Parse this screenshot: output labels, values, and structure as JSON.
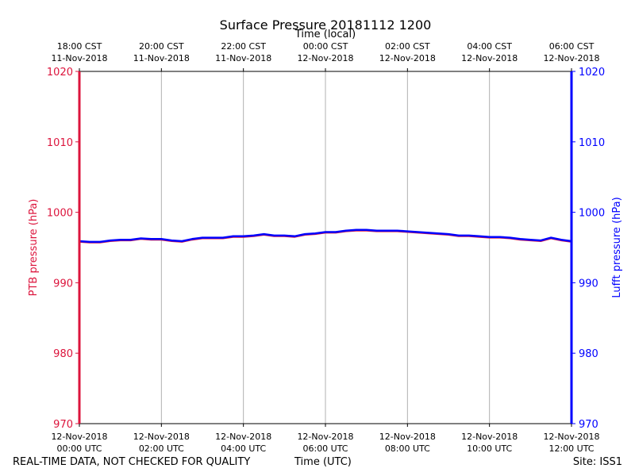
{
  "chart_data": {
    "type": "line",
    "title": "Surface Pressure 20181112 1200",
    "top_xlabel": "Time (local)",
    "xlabel": "Time (UTC)",
    "ylabel_left": "PTB pressure (hPa)",
    "ylabel_right": "Lufft pressure (hPa)",
    "ylim": [
      970,
      1020
    ],
    "yticks": [
      970,
      980,
      990,
      1000,
      1010,
      1020
    ],
    "xlim_hours": [
      0,
      12
    ],
    "bottom_ticks": [
      {
        "date": "12-Nov-2018",
        "time": "00:00 UTC"
      },
      {
        "date": "12-Nov-2018",
        "time": "02:00 UTC"
      },
      {
        "date": "12-Nov-2018",
        "time": "04:00 UTC"
      },
      {
        "date": "12-Nov-2018",
        "time": "06:00 UTC"
      },
      {
        "date": "12-Nov-2018",
        "time": "08:00 UTC"
      },
      {
        "date": "12-Nov-2018",
        "time": "10:00 UTC"
      },
      {
        "date": "12-Nov-2018",
        "time": "12:00 UTC"
      }
    ],
    "top_ticks": [
      {
        "time": "18:00 CST",
        "date": "11-Nov-2018"
      },
      {
        "time": "20:00 CST",
        "date": "11-Nov-2018"
      },
      {
        "time": "22:00 CST",
        "date": "11-Nov-2018"
      },
      {
        "time": "00:00 CST",
        "date": "12-Nov-2018"
      },
      {
        "time": "02:00 CST",
        "date": "12-Nov-2018"
      },
      {
        "time": "04:00 CST",
        "date": "12-Nov-2018"
      },
      {
        "time": "06:00 CST",
        "date": "12-Nov-2018"
      }
    ],
    "grid": "vertical",
    "colors": {
      "ptb": "#dc143c",
      "lufft": "#0000ff",
      "grid": "#b0b0b0"
    },
    "series": [
      {
        "key": "ptb",
        "x_hours": [
          0,
          0.25,
          0.5,
          0.75,
          1.0,
          1.25,
          1.5,
          1.75,
          2.0,
          2.25,
          2.5,
          2.75,
          3.0,
          3.25,
          3.5,
          3.75,
          4.0,
          4.25,
          4.5,
          4.75,
          5.0,
          5.25,
          5.5,
          5.75,
          6.0,
          6.25,
          6.5,
          6.75,
          7.0,
          7.25,
          7.5,
          7.75,
          8.0,
          8.25,
          8.5,
          8.75,
          9.0,
          9.25,
          9.5,
          9.75,
          10.0,
          10.25,
          10.5,
          10.75,
          11.0,
          11.25,
          11.5,
          11.75,
          12.0
        ],
        "values": [
          995.8,
          995.7,
          995.7,
          995.9,
          996.0,
          996.0,
          996.2,
          996.1,
          996.1,
          995.9,
          995.8,
          996.1,
          996.3,
          996.3,
          996.3,
          996.5,
          996.5,
          996.6,
          996.8,
          996.6,
          996.6,
          996.5,
          996.8,
          996.9,
          997.1,
          997.1,
          997.3,
          997.4,
          997.4,
          997.3,
          997.3,
          997.3,
          997.2,
          997.1,
          997.0,
          996.9,
          996.8,
          996.6,
          996.6,
          996.5,
          996.4,
          996.4,
          996.3,
          996.1,
          996.0,
          995.9,
          996.3,
          996.0,
          995.8
        ]
      },
      {
        "key": "lufft",
        "x_hours": [
          0,
          0.25,
          0.5,
          0.75,
          1.0,
          1.25,
          1.5,
          1.75,
          2.0,
          2.25,
          2.5,
          2.75,
          3.0,
          3.25,
          3.5,
          3.75,
          4.0,
          4.25,
          4.5,
          4.75,
          5.0,
          5.25,
          5.5,
          5.75,
          6.0,
          6.25,
          6.5,
          6.75,
          7.0,
          7.25,
          7.5,
          7.75,
          8.0,
          8.25,
          8.5,
          8.75,
          9.0,
          9.25,
          9.5,
          9.75,
          10.0,
          10.25,
          10.5,
          10.75,
          11.0,
          11.25,
          11.5,
          11.75,
          12.0
        ],
        "values": [
          995.9,
          995.8,
          995.8,
          996.0,
          996.1,
          996.1,
          996.3,
          996.2,
          996.2,
          996.0,
          995.9,
          996.2,
          996.4,
          996.4,
          996.4,
          996.6,
          996.6,
          996.7,
          996.9,
          996.7,
          996.7,
          996.6,
          996.9,
          997.0,
          997.2,
          997.2,
          997.4,
          997.5,
          997.5,
          997.4,
          997.4,
          997.4,
          997.3,
          997.2,
          997.1,
          997.0,
          996.9,
          996.7,
          996.7,
          996.6,
          996.5,
          996.5,
          996.4,
          996.2,
          996.1,
          996.0,
          996.4,
          996.1,
          995.9
        ]
      }
    ]
  },
  "footer": {
    "left": "REAL-TIME DATA, NOT CHECKED FOR QUALITY",
    "center": "Time (UTC)",
    "right": "Site: ISS1"
  }
}
